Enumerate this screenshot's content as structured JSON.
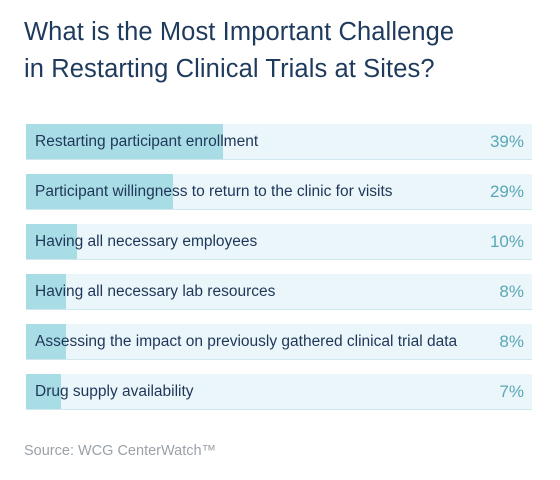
{
  "chart_data": {
    "type": "bar",
    "orientation": "horizontal",
    "title": "What is the Most Important Challenge in Restarting Clinical Trials at Sites?",
    "title_lines": [
      "What is the Most Important Challenge",
      "in Restarting Clinical Trials at Sites?"
    ],
    "categories": [
      "Restarting participant enrollment",
      "Participant willingness to return to the clinic for visits",
      "Having all necessary employees",
      "Having all necessary lab resources",
      "Assessing the impact on previously gathered clinical trial data",
      "Drug supply availability"
    ],
    "values": [
      39,
      29,
      10,
      8,
      8,
      7
    ],
    "value_labels": [
      "39%",
      "29%",
      "10%",
      "8%",
      "8%",
      "7%"
    ],
    "unit": "%",
    "xlim": [
      0,
      100
    ],
    "source": "Source: WCG CenterWatch™"
  },
  "colors": {
    "title": "#1e3a5c",
    "bar_fill": "#a9dde6",
    "bar_track": "#eaf6fa",
    "label": "#1f3658",
    "value": "#5aa7b6",
    "source": "#9aa1a8"
  }
}
